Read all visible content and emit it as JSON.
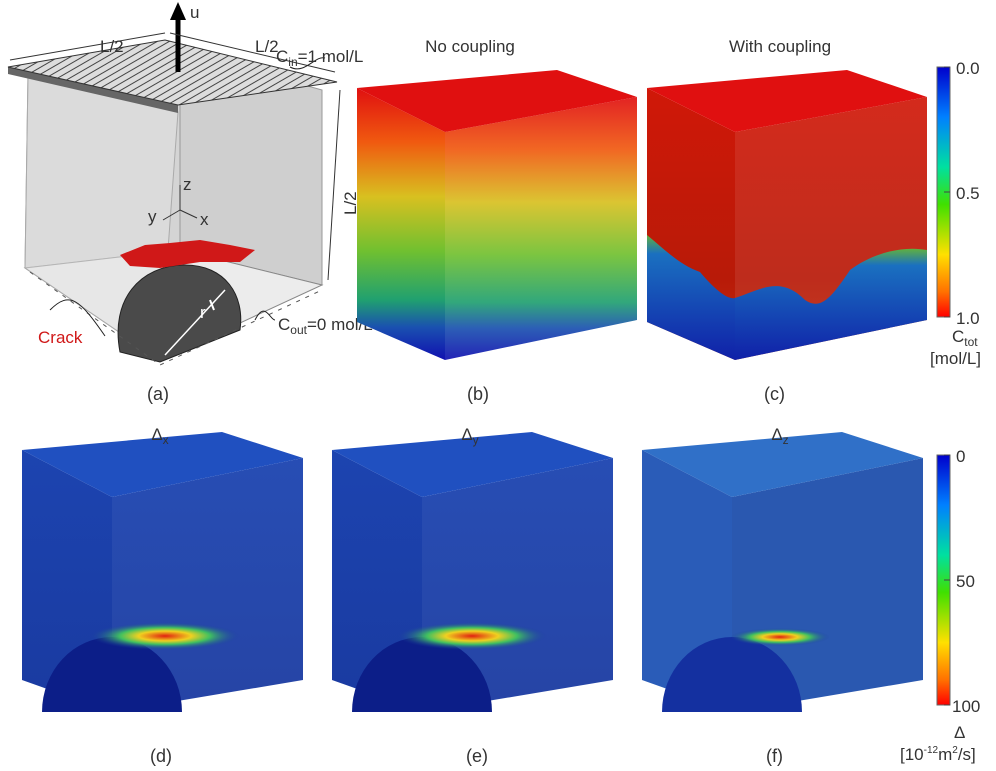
{
  "panel_a": {
    "force": "u",
    "dims": [
      "L/2",
      "L/2",
      "L/2"
    ],
    "top_bc": {
      "symbol": "C",
      "sub": "in",
      "rest": "=1 mol/L"
    },
    "bottom_bc": {
      "symbol": "C",
      "sub": "out",
      "rest": "=0 mol/L"
    },
    "axes": [
      "z",
      "y",
      "x"
    ],
    "radius": "r",
    "crack": "Crack",
    "label": "(a)"
  },
  "panel_b": {
    "title": "No coupling",
    "label": "(b)"
  },
  "panel_c": {
    "title": "With coupling",
    "label": "(c)"
  },
  "panel_d": {
    "title": {
      "symbol": "Δ",
      "sub": "x"
    },
    "label": "(d)"
  },
  "panel_e": {
    "title": {
      "symbol": "Δ",
      "sub": "y"
    },
    "label": "(e)"
  },
  "panel_f": {
    "title": {
      "symbol": "Δ",
      "sub": "z"
    },
    "label": "(f)"
  },
  "colorbar_top": {
    "ticks": [
      "0.0",
      "0.5",
      "1.0"
    ],
    "title": {
      "symbol": "C",
      "sub": "tot"
    },
    "unit": "[mol/L]"
  },
  "colorbar_bottom": {
    "ticks": [
      "0",
      "50",
      "100"
    ],
    "title": "Δ",
    "unit": {
      "pre": "[10",
      "sup": "-12",
      "mid": "m",
      "sup2": "2",
      "post": "/s]"
    }
  }
}
